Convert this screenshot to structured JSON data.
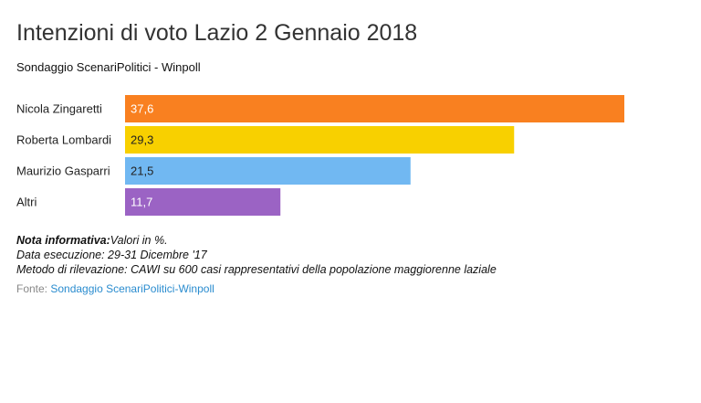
{
  "chart_data": {
    "type": "bar",
    "orientation": "horizontal",
    "title": "Intenzioni di voto Lazio 2 Gennaio 2018",
    "subtitle": "Sondaggio ScenariPolitici - Winpoll",
    "categories": [
      "Nicola Zingaretti",
      "Roberta Lombardi",
      "Maurizio Gasparri",
      "Altri"
    ],
    "values": [
      37.6,
      29.3,
      21.5,
      11.7
    ],
    "value_labels": [
      "37,6",
      "29,3",
      "21,5",
      "11,7"
    ],
    "colors": [
      "#f98020",
      "#f8d000",
      "#71b8f2",
      "#9b63c4"
    ],
    "value_label_colors": [
      "#ffffff",
      "#222222",
      "#222222",
      "#ffffff"
    ],
    "xlim": [
      0,
      40
    ],
    "grid": false,
    "legend": "none"
  },
  "notes": {
    "line1_bold": "Nota informativa:",
    "line1_rest": "Valori in %.",
    "line2": "Data esecuzione: 29-31 Dicembre '17",
    "line3": "Metodo di rilevazione: CAWI su 600 casi rappresentativi della popolazione maggiorenne laziale"
  },
  "source": {
    "prefix": "Fonte: ",
    "link_text": "Sondaggio ScenariPolitici-Winpoll"
  }
}
